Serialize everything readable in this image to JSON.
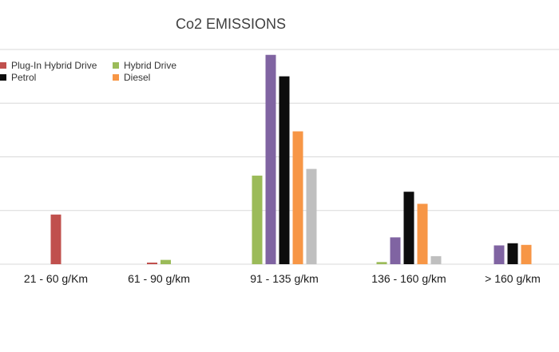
{
  "chart_data": {
    "type": "bar",
    "title": "Co2 EMISSIONS",
    "xlabel": "",
    "ylabel": "",
    "categories": [
      "21 - 60 g/Km",
      "61 - 90 g/km",
      "91 - 135 g/km",
      "136 - 160 g/km",
      "> 160 g/km"
    ],
    "series": [
      {
        "name": "Plug-In Hybrid Drive",
        "color": "#c0504d",
        "values": [
          18.5,
          0.6,
          0,
          0,
          0
        ]
      },
      {
        "name": "Hybrid Drive",
        "color": "#9bbb59",
        "values": [
          0,
          1.6,
          33,
          0.8,
          0
        ]
      },
      {
        "name": "",
        "color": "#8064a2",
        "values": [
          0,
          0,
          78,
          10,
          7
        ]
      },
      {
        "name": "Petrol",
        "color": "#0d0d0d",
        "values": [
          0,
          0,
          70,
          27,
          7.8
        ]
      },
      {
        "name": "Diesel",
        "color": "#f79646",
        "values": [
          0,
          0,
          49.5,
          22.5,
          7.2
        ]
      },
      {
        "name": "",
        "color": "#bfbfbf",
        "values": [
          0,
          0,
          35.5,
          3,
          0
        ]
      }
    ],
    "ylim": [
      0,
      80
    ],
    "gridlines": [
      0,
      20,
      40,
      60,
      80
    ],
    "grid": true,
    "legend_position": "top-left"
  }
}
